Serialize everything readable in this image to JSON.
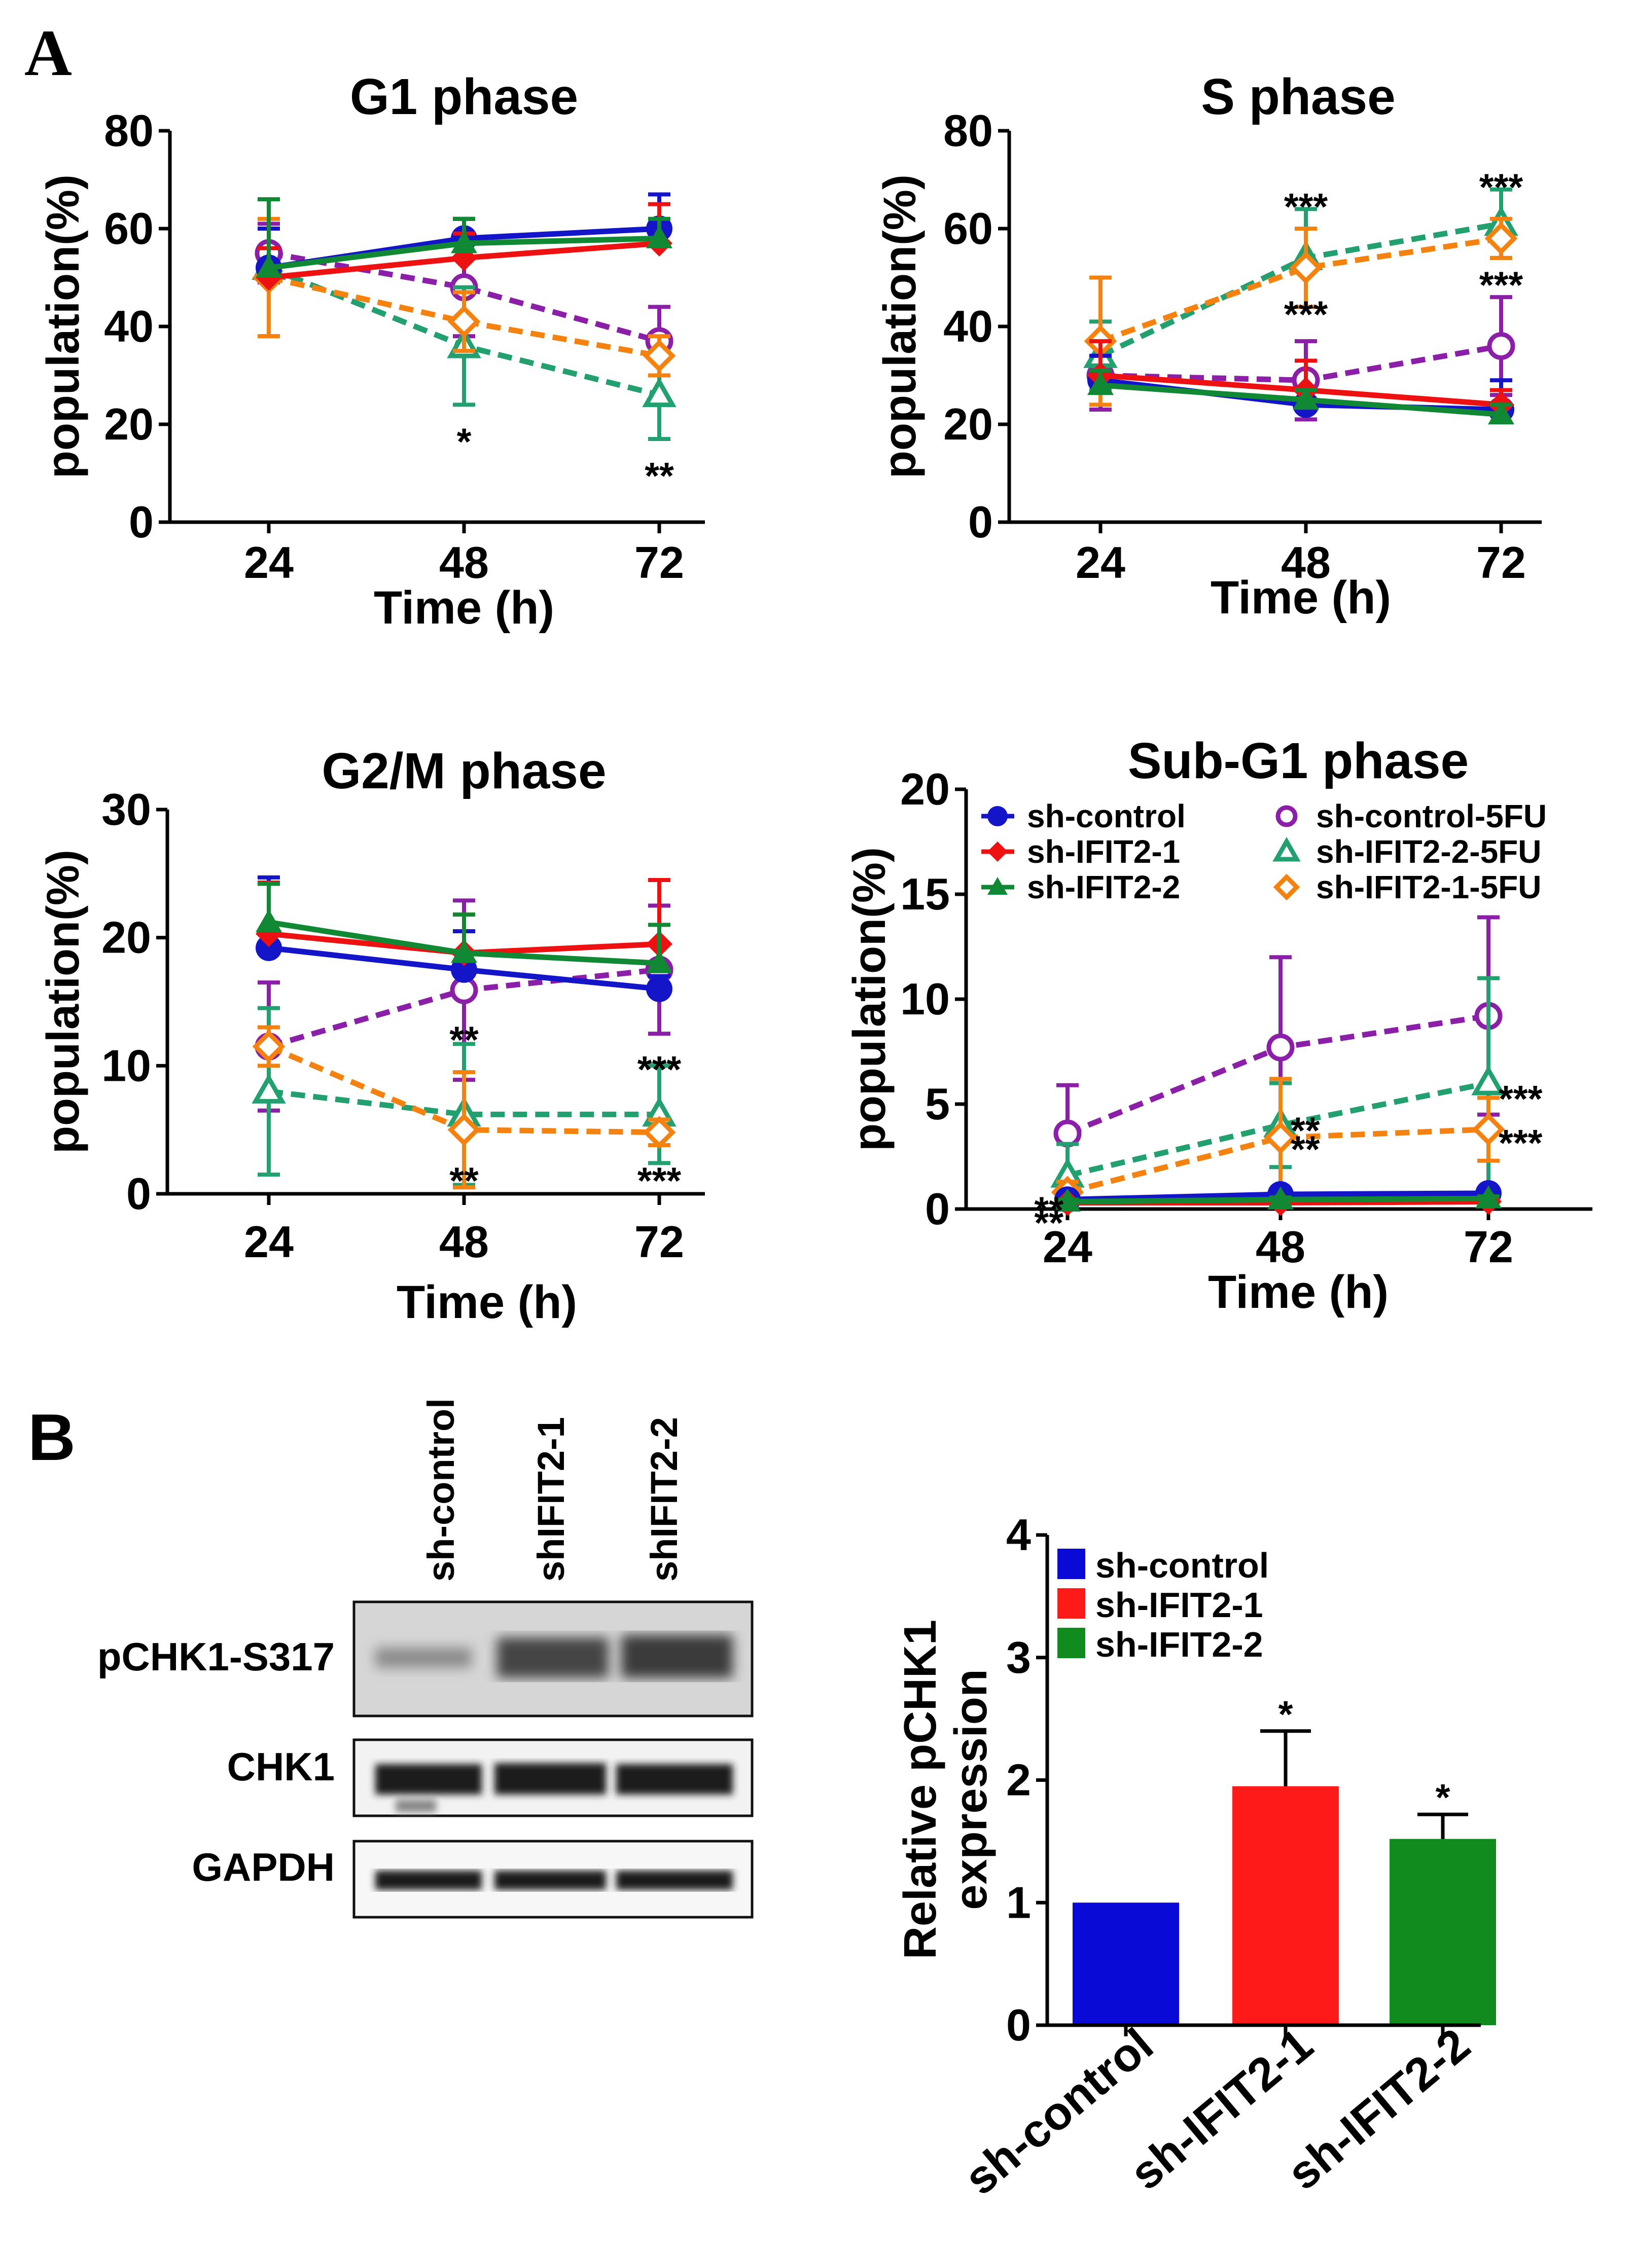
{
  "figure": {
    "panel_a_label": "A",
    "panel_b_label": "B"
  },
  "series_styles": [
    {
      "name": "sh-control",
      "color": "#1414c8",
      "marker": "filled-circle",
      "dashed": false
    },
    {
      "name": "sh-IFIT2-1",
      "color": "#ee1111",
      "marker": "filled-diamond",
      "dashed": false
    },
    {
      "name": "sh-IFIT2-2",
      "color": "#118833",
      "marker": "filled-triangle",
      "dashed": false
    },
    {
      "name": "sh-control-5FU",
      "color": "#8b1fa8",
      "marker": "open-circle",
      "dashed": true
    },
    {
      "name": "sh-IFIT2-2-5FU",
      "color": "#22a070",
      "marker": "open-triangle",
      "dashed": true
    },
    {
      "name": "sh-IFIT2-1-5FU",
      "color": "#f5820f",
      "marker": "open-diamond",
      "dashed": true
    }
  ],
  "chart_data": [
    {
      "id": "g1",
      "type": "line",
      "title": "G1 phase",
      "xlabel": "Time  (h)",
      "ylabel": "population(%)",
      "x": [
        24,
        48,
        72
      ],
      "xticks": [
        "24",
        "48",
        "72"
      ],
      "ylim": [
        0,
        80
      ],
      "yticks": [
        "0",
        "20",
        "40",
        "60",
        "80"
      ],
      "series": [
        {
          "name": "sh-control",
          "values": [
            52,
            58,
            60
          ],
          "err": [
            8,
            4,
            7
          ]
        },
        {
          "name": "sh-IFIT2-1",
          "values": [
            50,
            54,
            57
          ],
          "err": [
            6,
            5,
            8
          ]
        },
        {
          "name": "sh-IFIT2-2",
          "values": [
            52,
            57,
            58
          ],
          "err": [
            14,
            5,
            4
          ]
        },
        {
          "name": "sh-control-5FU",
          "values": [
            55,
            48,
            37
          ],
          "err": [
            6,
            10,
            7
          ]
        },
        {
          "name": "sh-IFIT2-2-5FU",
          "values": [
            52,
            36,
            26
          ],
          "err": [
            14,
            12,
            9
          ]
        },
        {
          "name": "sh-IFIT2-1-5FU",
          "values": [
            50,
            41,
            34
          ],
          "err": [
            12,
            6,
            4
          ]
        }
      ],
      "annotations": [
        {
          "text": "*",
          "x": 48,
          "y": 18
        },
        {
          "text": "**",
          "x": 72,
          "y": 11
        }
      ]
    },
    {
      "id": "s",
      "type": "line",
      "title": "S phase",
      "xlabel": "Time  (h)",
      "ylabel": "population(%)",
      "x": [
        24,
        48,
        72
      ],
      "xticks": [
        "24",
        "48",
        "72"
      ],
      "ylim": [
        0,
        80
      ],
      "yticks": [
        "0",
        "20",
        "40",
        "60",
        "80"
      ],
      "series": [
        {
          "name": "sh-control",
          "values": [
            29,
            24,
            23
          ],
          "err": [
            5,
            3,
            6
          ]
        },
        {
          "name": "sh-IFIT2-1",
          "values": [
            30,
            27,
            24
          ],
          "err": [
            7,
            6,
            3
          ]
        },
        {
          "name": "sh-IFIT2-2",
          "values": [
            28,
            25,
            22
          ],
          "err": [
            3,
            2,
            2
          ]
        },
        {
          "name": "sh-control-5FU",
          "values": [
            30,
            29,
            36
          ],
          "err": [
            7,
            8,
            10
          ]
        },
        {
          "name": "sh-IFIT2-2-5FU",
          "values": [
            34,
            54,
            61
          ],
          "err": [
            7,
            10,
            7
          ]
        },
        {
          "name": "sh-IFIT2-1-5FU",
          "values": [
            37,
            52,
            58
          ],
          "err": [
            13,
            8,
            4
          ]
        }
      ],
      "annotations": [
        {
          "text": "***",
          "x": 48,
          "y": 66
        },
        {
          "text": "***",
          "x": 48,
          "y": 44
        },
        {
          "text": "***",
          "x": 72,
          "y": 70
        },
        {
          "text": "***",
          "x": 72,
          "y": 50
        }
      ]
    },
    {
      "id": "g2m",
      "type": "line",
      "title": "G2/M phase",
      "xlabel": "Time  (h)",
      "ylabel": "population(%)",
      "x": [
        24,
        48,
        72
      ],
      "xticks": [
        "24",
        "48",
        "72"
      ],
      "ylim": [
        0,
        30
      ],
      "yticks": [
        "0",
        "10",
        "20",
        "30"
      ],
      "series": [
        {
          "name": "sh-control",
          "values": [
            19.2,
            17.5,
            16.0
          ],
          "err": [
            5.5,
            3,
            1
          ]
        },
        {
          "name": "sh-IFIT2-1",
          "values": [
            20.3,
            18.8,
            19.5
          ],
          "err": [
            4,
            3,
            5
          ]
        },
        {
          "name": "sh-IFIT2-2",
          "values": [
            21.2,
            18.8,
            18.0
          ],
          "err": [
            3,
            3,
            3
          ]
        },
        {
          "name": "sh-control-5FU",
          "values": [
            11.5,
            15.9,
            17.5
          ],
          "err": [
            5,
            7,
            5
          ]
        },
        {
          "name": "sh-IFIT2-2-5FU",
          "values": [
            8.0,
            6.2,
            6.2
          ],
          "err": [
            6.5,
            5.5,
            3.8
          ]
        },
        {
          "name": "sh-IFIT2-1-5FU",
          "values": [
            11.5,
            5.0,
            4.8
          ],
          "err": [
            1.5,
            4.5,
            1
          ]
        }
      ],
      "annotations": [
        {
          "text": "**",
          "x": 48,
          "y": 12.6
        },
        {
          "text": "**",
          "x": 48,
          "y": 1.6
        },
        {
          "text": "***",
          "x": 72,
          "y": 10.3
        },
        {
          "text": "***",
          "x": 72,
          "y": 1.6
        }
      ]
    },
    {
      "id": "subg1",
      "type": "line",
      "title": "Sub-G1 phase",
      "xlabel": "Time  (h)",
      "ylabel": "population(%)",
      "x": [
        24,
        48,
        72
      ],
      "xticks": [
        "24",
        "48",
        "72"
      ],
      "ylim": [
        0,
        20
      ],
      "yticks": [
        "0",
        "5",
        "10",
        "15",
        "20"
      ],
      "series": [
        {
          "name": "sh-control",
          "values": [
            0.45,
            0.7,
            0.75
          ],
          "err": [
            0.1,
            0.1,
            0.1
          ]
        },
        {
          "name": "sh-IFIT2-1",
          "values": [
            0.3,
            0.3,
            0.35
          ],
          "err": [
            0.1,
            0.1,
            0.1
          ]
        },
        {
          "name": "sh-IFIT2-2",
          "values": [
            0.35,
            0.45,
            0.5
          ],
          "err": [
            0.1,
            0.1,
            0.1
          ]
        },
        {
          "name": "sh-control-5FU",
          "values": [
            3.6,
            7.7,
            9.2
          ],
          "err": [
            2.3,
            4.3,
            4.7
          ]
        },
        {
          "name": "sh-IFIT2-2-5FU",
          "values": [
            1.6,
            4.0,
            6.0
          ],
          "err": [
            1.5,
            2.0,
            5.0
          ]
        },
        {
          "name": "sh-IFIT2-1-5FU",
          "values": [
            0.8,
            3.4,
            3.8
          ],
          "err": [
            0.5,
            2.8,
            1.5
          ]
        }
      ],
      "annotations": [
        {
          "text": "**",
          "x": 24,
          "y": 0.3,
          "anchor": "left"
        },
        {
          "text": "**",
          "x": 24,
          "y": -0.3,
          "anchor": "left"
        },
        {
          "text": "**",
          "x": 48,
          "y": 4.1,
          "anchor": "right"
        },
        {
          "text": "**",
          "x": 48,
          "y": 3.2,
          "anchor": "right"
        },
        {
          "text": "***",
          "x": 72,
          "y": 5.6,
          "anchor": "right"
        },
        {
          "text": "***",
          "x": 72,
          "y": 3.5,
          "anchor": "right"
        }
      ],
      "legend": [
        "sh-control",
        "sh-control-5FU",
        "sh-IFIT2-1",
        "sh-IFIT2-2-5FU",
        "sh-IFIT2-2",
        "sh-IFIT2-1-5FU"
      ]
    },
    {
      "id": "bar",
      "type": "bar",
      "title": "",
      "xlabel": "",
      "ylabel": "Relative pCHK1 expression",
      "ylabel_lines": [
        "Relative pCHK1",
        "expression"
      ],
      "categories": [
        "sh-control",
        "sh-IFIT2-1",
        "sh-IFIT2-2"
      ],
      "values": [
        1.0,
        1.95,
        1.52
      ],
      "err": [
        0,
        0.45,
        0.2
      ],
      "colors": [
        "#0a0ad6",
        "#ff1a1a",
        "#118a1e"
      ],
      "ylim": [
        0,
        4
      ],
      "yticks": [
        "0",
        "1",
        "2",
        "3",
        "4"
      ],
      "annotations": [
        {
          "text": "*",
          "category": "sh-IFIT2-1"
        },
        {
          "text": "*",
          "category": "sh-IFIT2-2"
        }
      ],
      "legend": [
        "sh-control",
        "sh-IFIT2-1",
        "sh-IFIT2-2"
      ]
    }
  ],
  "blot": {
    "lanes": [
      "sh-control",
      "shIFIT2-1",
      "shIFIT2-2"
    ],
    "rows": [
      "pCHK1-S317",
      "CHK1",
      "GAPDH"
    ]
  }
}
